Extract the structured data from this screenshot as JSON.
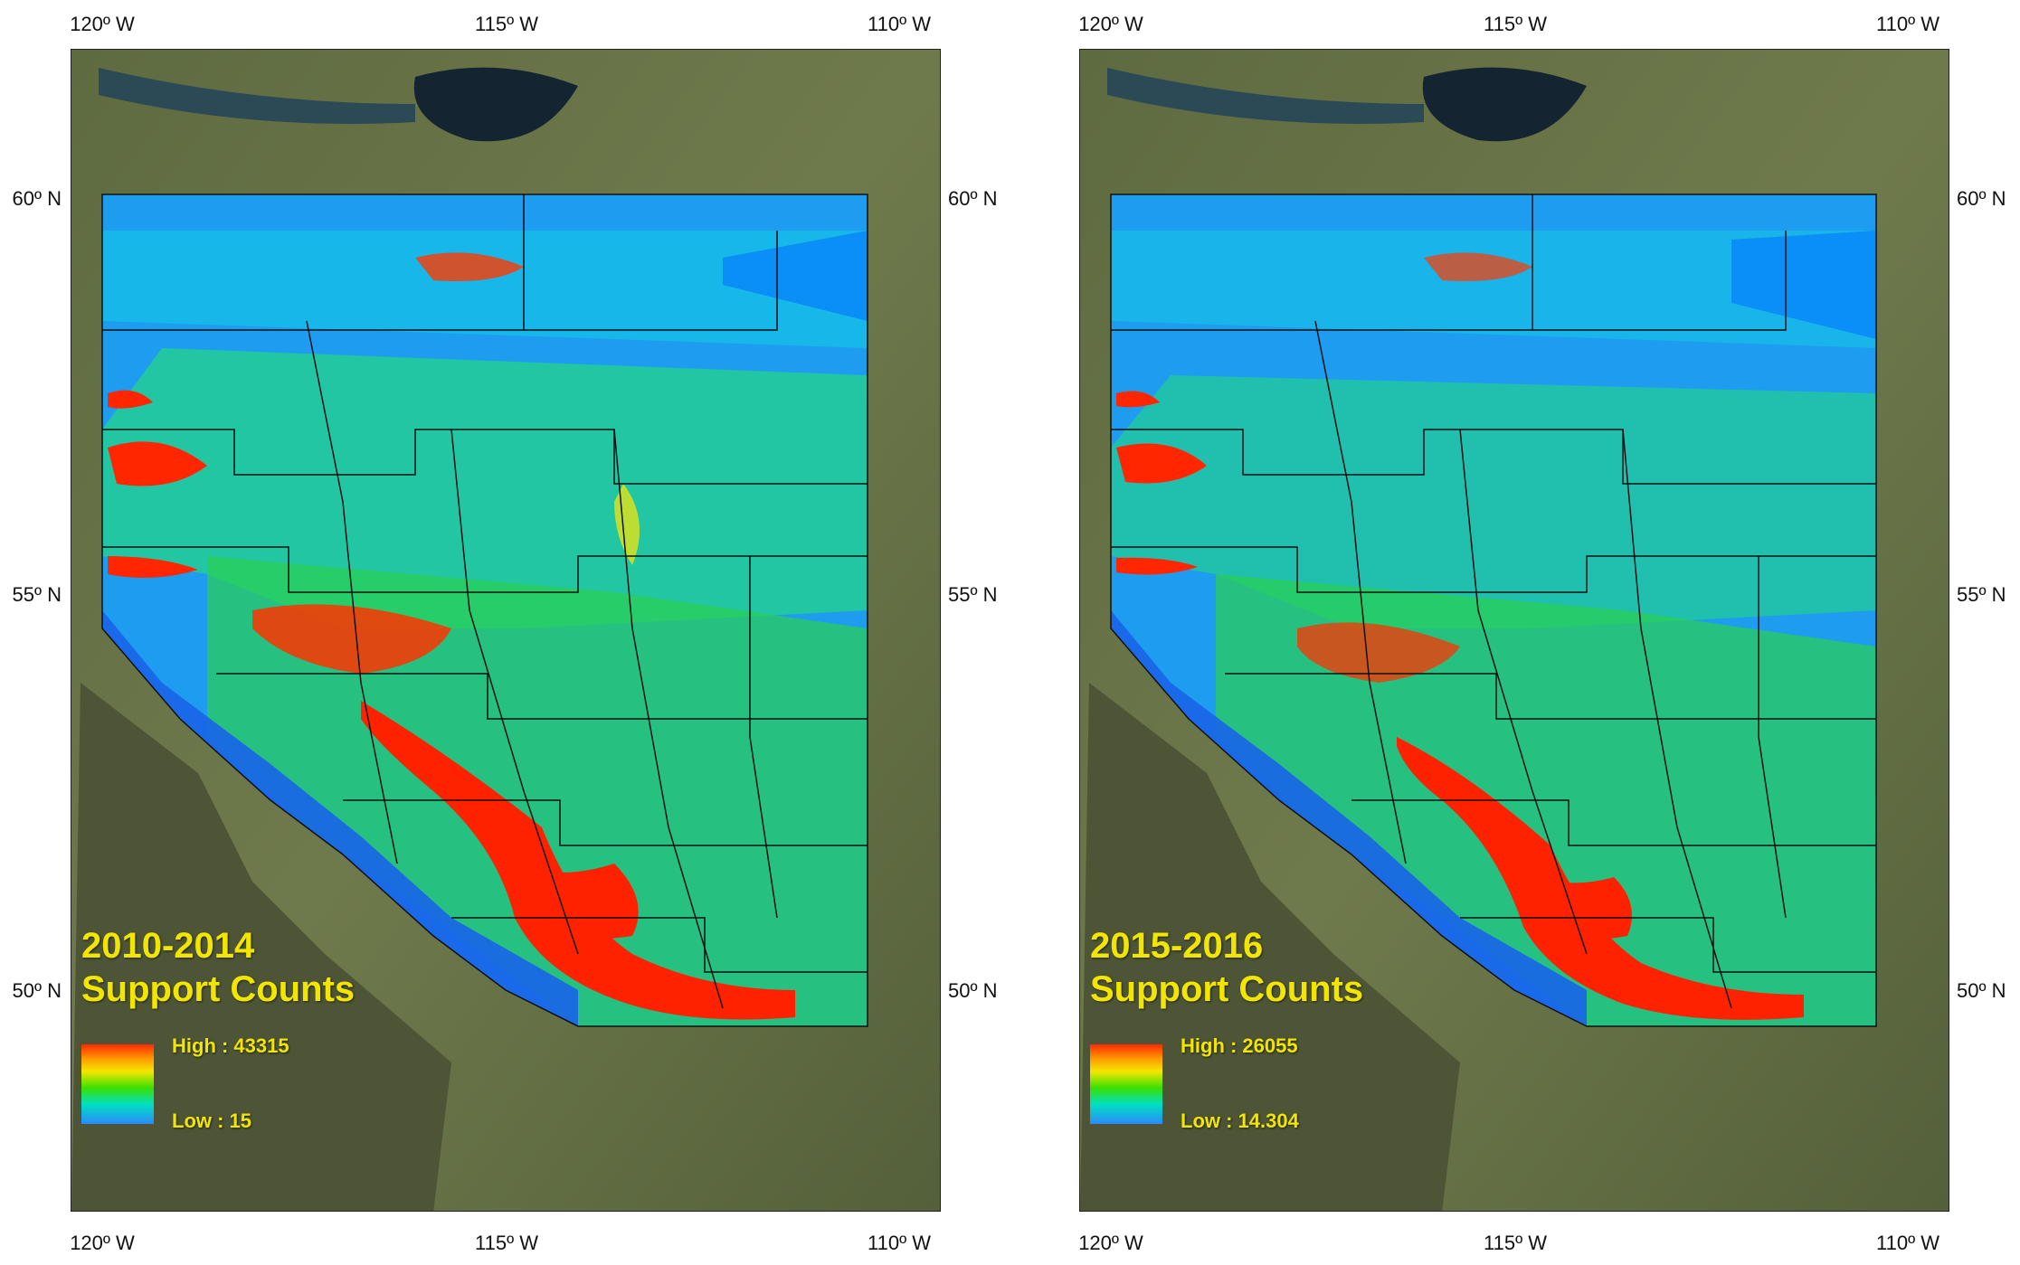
{
  "axes": {
    "longitude_labels": [
      "120º W",
      "115º W",
      "110º W"
    ],
    "latitude_labels": [
      "60º N",
      "55º N",
      "50º N"
    ]
  },
  "panels": [
    {
      "title_line1": "2010-2014",
      "title_line2": "Support Counts",
      "legend_high": "High : 43315",
      "legend_low": "Low : 15"
    },
    {
      "title_line1": "2015-2016",
      "title_line2": "Support Counts",
      "legend_high": "High : 26055",
      "legend_low": "Low : 14.304"
    }
  ],
  "colors": {
    "title": "#f2e600",
    "high": "#ff2a00",
    "mid": "#38e000",
    "low": "#2a8aff"
  }
}
